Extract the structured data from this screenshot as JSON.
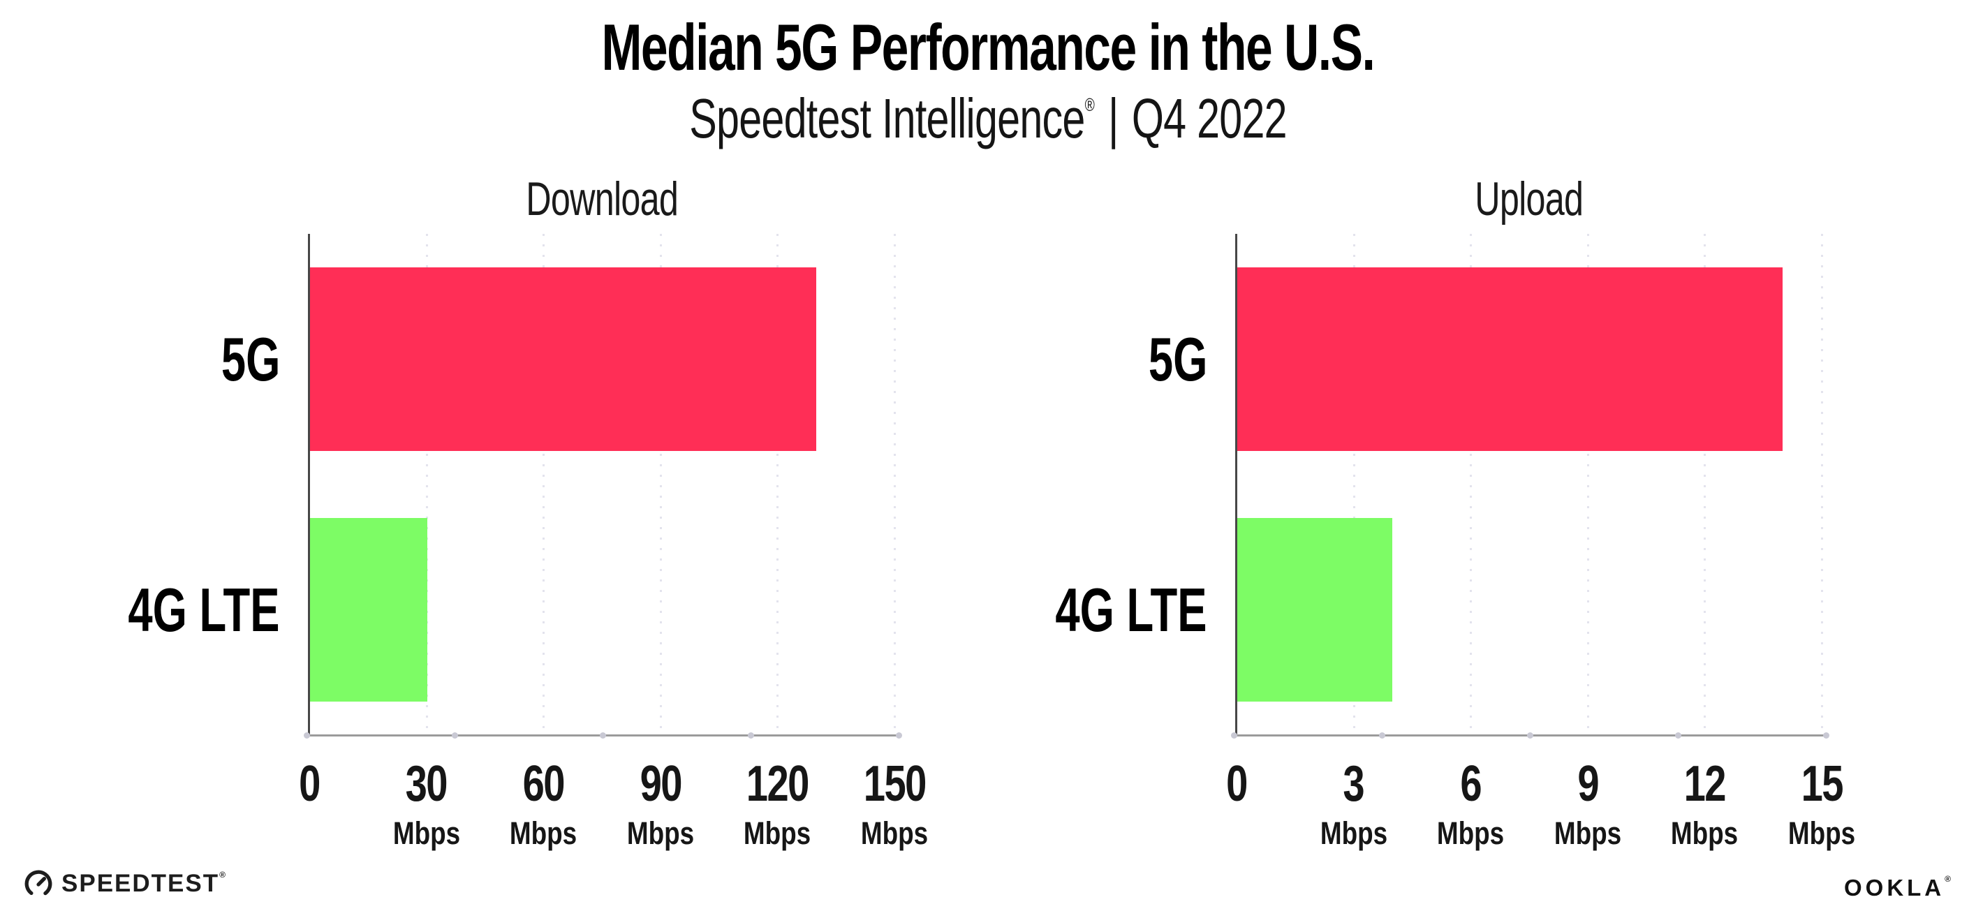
{
  "header": {
    "title": "Median 5G Performance in the U.S.",
    "subtitle_brand": "Speedtest Intelligence",
    "subtitle_mark": "®",
    "subtitle_separator": "|",
    "subtitle_period": "Q4 2022"
  },
  "footer": {
    "speedtest_wordmark": "SPEEDTEST",
    "speedtest_mark": "®",
    "ookla_wordmark": "OOKLA",
    "ookla_mark": "®"
  },
  "colors": {
    "bar_5g": "#FF2E56",
    "bar_4g_lte": "#7DFC65",
    "y_axis_line": "#474747",
    "x_axis_line": "#9B9B9B",
    "gridline": "#E3E3ED",
    "text": "#111111"
  },
  "chart_data": [
    {
      "type": "bar",
      "orientation": "horizontal",
      "title": "Download",
      "categories": [
        "5G",
        "4G LTE"
      ],
      "values": [
        130,
        30.3
      ],
      "unit": "Mbps",
      "xlim": [
        0,
        150
      ],
      "xticks": [
        0,
        30,
        60,
        90,
        120,
        150
      ],
      "tick_unit": "Mbps",
      "bar_colors": [
        "#FF2E56",
        "#7DFC65"
      ],
      "grid": "dotted-vertical-at-major-ticks",
      "legend": "none"
    },
    {
      "type": "bar",
      "orientation": "horizontal",
      "title": "Upload",
      "categories": [
        "5G",
        "4G LTE"
      ],
      "values": [
        14,
        4
      ],
      "unit": "Mbps",
      "xlim": [
        0,
        15
      ],
      "xticks": [
        0,
        3,
        6,
        9,
        12,
        15
      ],
      "tick_unit": "Mbps",
      "bar_colors": [
        "#FF2E56",
        "#7DFC65"
      ],
      "grid": "dotted-vertical-at-major-ticks",
      "legend": "none"
    }
  ]
}
